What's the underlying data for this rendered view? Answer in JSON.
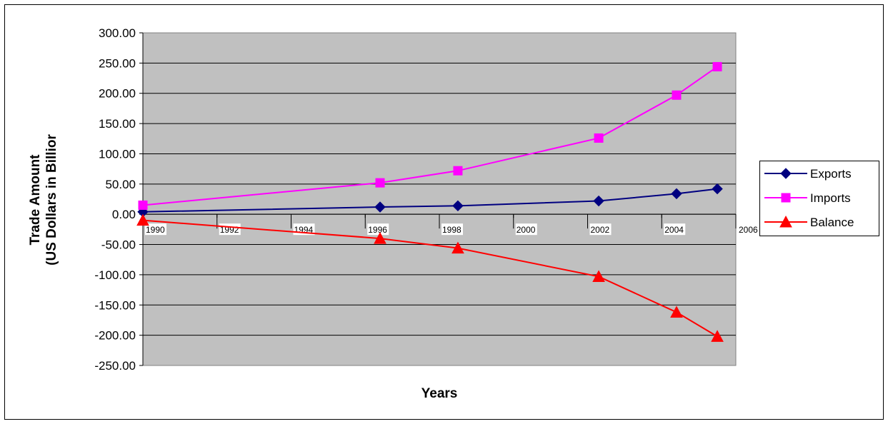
{
  "colors": {
    "plot_bg": "#c0c0c0",
    "grid": "#000000",
    "exports": "#000080",
    "imports": "#ff00ff",
    "balance": "#ff0000"
  },
  "chart_data": {
    "type": "line",
    "title": "",
    "xlabel": "Years",
    "ylabel_line1": "Trade Amount",
    "ylabel_line2": "(US Dollars in Billior",
    "xlim": [
      1990,
      2006
    ],
    "ylim": [
      -250,
      300
    ],
    "x_ticks": [
      "1990",
      "1992",
      "1994",
      "1996",
      "1998",
      "2000",
      "2002",
      "2004",
      "2006"
    ],
    "y_ticks": [
      "300.00",
      "250.00",
      "200.00",
      "150.00",
      "100.00",
      "50.00",
      "0.00",
      "-50.00",
      "-100.00",
      "-150.00",
      "-200.00",
      "-250.00"
    ],
    "grid": true,
    "legend_position": "right",
    "series": [
      {
        "name": "Exports",
        "marker": "diamond-icon",
        "x": [
          1990,
          1996.4,
          1998.5,
          2002.3,
          2004.4,
          2005.5
        ],
        "values": [
          4,
          12,
          14,
          22,
          34,
          42
        ]
      },
      {
        "name": "Imports",
        "marker": "square-icon",
        "x": [
          1990,
          1996.4,
          1998.5,
          2002.3,
          2004.4,
          2005.5
        ],
        "values": [
          15,
          52,
          72,
          126,
          197,
          244
        ]
      },
      {
        "name": "Balance",
        "marker": "triangle-icon",
        "x": [
          1990,
          1996.4,
          1998.5,
          2002.3,
          2004.4,
          2005.5
        ],
        "values": [
          -10,
          -40,
          -56,
          -103,
          -162,
          -202
        ]
      }
    ]
  }
}
